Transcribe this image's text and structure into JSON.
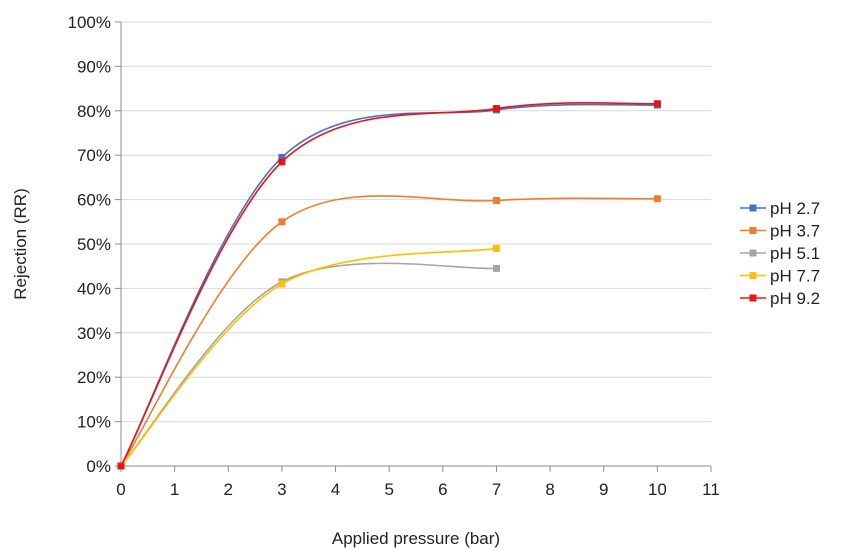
{
  "chart_data": {
    "type": "line",
    "title": "",
    "xlabel": "Applied pressure (bar)",
    "ylabel": "Rejection  (RR)",
    "xlim": [
      0,
      11
    ],
    "ylim": [
      0,
      100
    ],
    "x_ticks": [
      "0",
      "1",
      "2",
      "3",
      "4",
      "5",
      "6",
      "7",
      "8",
      "9",
      "10",
      "11"
    ],
    "y_ticks": [
      "0%",
      "10%",
      "20%",
      "30%",
      "40%",
      "50%",
      "60%",
      "70%",
      "80%",
      "90%",
      "100%"
    ],
    "grid": "horizontal",
    "smoothed": true,
    "legend_position": "right",
    "series": [
      {
        "name": "pH 2.7",
        "color": "#4472C4",
        "points": [
          [
            0,
            0
          ],
          [
            3,
            69.5
          ],
          [
            7,
            80.2
          ],
          [
            10,
            81.3
          ]
        ]
      },
      {
        "name": "pH 3.7",
        "color": "#ED7D31",
        "points": [
          [
            0,
            0
          ],
          [
            3,
            55.0
          ],
          [
            7,
            59.8
          ],
          [
            10,
            60.2
          ]
        ]
      },
      {
        "name": "pH 5.1",
        "color": "#A5A5A5",
        "points": [
          [
            0,
            0
          ],
          [
            3,
            41.5
          ],
          [
            7,
            44.5
          ]
        ]
      },
      {
        "name": "pH 7.7",
        "color": "#FFC000",
        "points": [
          [
            0,
            0
          ],
          [
            3,
            41.0
          ],
          [
            7,
            49.0
          ]
        ]
      },
      {
        "name": "pH 9.2",
        "color": "#E8141B",
        "points": [
          [
            0,
            0
          ],
          [
            3,
            68.5
          ],
          [
            7,
            80.5
          ],
          [
            10,
            81.6
          ]
        ]
      }
    ]
  }
}
